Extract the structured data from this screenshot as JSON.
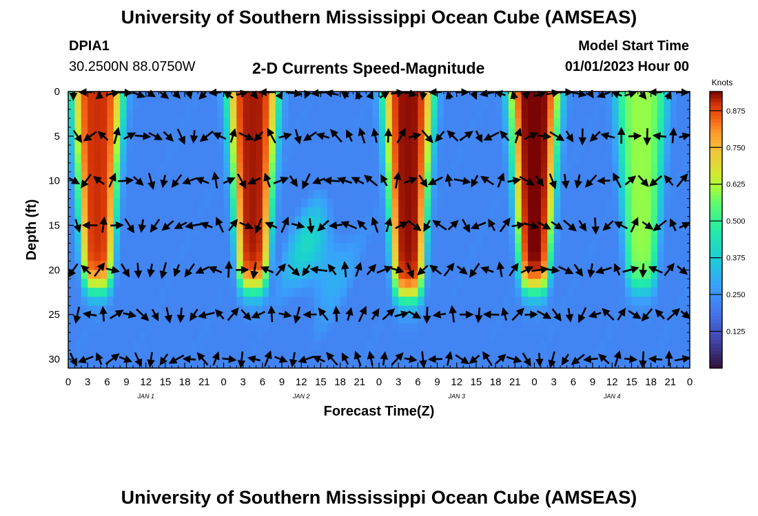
{
  "header": {
    "title": "University of Southern Mississippi Ocean Cube (AMSEAS)",
    "station": "DPIA1",
    "coords": "30.2500N  88.0750W",
    "plot_title": "2-D Currents Speed-Magnitude",
    "model_label": "Model Start Time",
    "model_time": "01/01/2023 Hour 00"
  },
  "footer": {
    "title": "University of Southern Mississippi Ocean Cube (AMSEAS)"
  },
  "chart_data": {
    "type": "heatmap",
    "title": "2-D Currents Speed-Magnitude",
    "xlabel": "Forecast Time(Z)",
    "ylabel": "Depth (ft)",
    "x_ticks": [
      "0",
      "3",
      "6",
      "9",
      "12",
      "15",
      "18",
      "21",
      "0",
      "3",
      "6",
      "9",
      "12",
      "15",
      "18",
      "21",
      "0",
      "3",
      "6",
      "9",
      "12",
      "15",
      "18",
      "21",
      "0",
      "3",
      "6",
      "9",
      "12",
      "15",
      "18",
      "21",
      "0"
    ],
    "x_range_hours": [
      0,
      96
    ],
    "day_labels": [
      {
        "label": "JAN 1",
        "hour": 12
      },
      {
        "label": "JAN 2",
        "hour": 36
      },
      {
        "label": "JAN 3",
        "hour": 60
      },
      {
        "label": "JAN 4",
        "hour": 84
      }
    ],
    "y_ticks": [
      "0",
      "5",
      "10",
      "15",
      "20",
      "25",
      "30"
    ],
    "y_range_ft": [
      0,
      31
    ],
    "colorbar": {
      "unit": "Knots",
      "ticks": [
        "0.875",
        "0.750",
        "0.625",
        "0.500",
        "0.375",
        "0.250",
        "0.125"
      ],
      "range": [
        0,
        0.94
      ]
    },
    "speed_lobes_knots": [
      {
        "center_hour": 4.5,
        "max_depth_ft": 22,
        "peak": 0.9
      },
      {
        "center_hour": 28.5,
        "max_depth_ft": 22,
        "peak": 0.92
      },
      {
        "center_hour": 52.5,
        "max_depth_ft": 23,
        "peak": 0.93
      },
      {
        "center_hour": 72,
        "max_depth_ft": 22,
        "peak": 0.95
      },
      {
        "center_hour": 88.5,
        "max_depth_ft": 22,
        "peak": 0.6
      }
    ],
    "vector_grid": {
      "hour_step": 2,
      "depth_levels_ft": [
        0,
        5,
        10,
        15,
        20,
        25,
        30
      ]
    }
  }
}
